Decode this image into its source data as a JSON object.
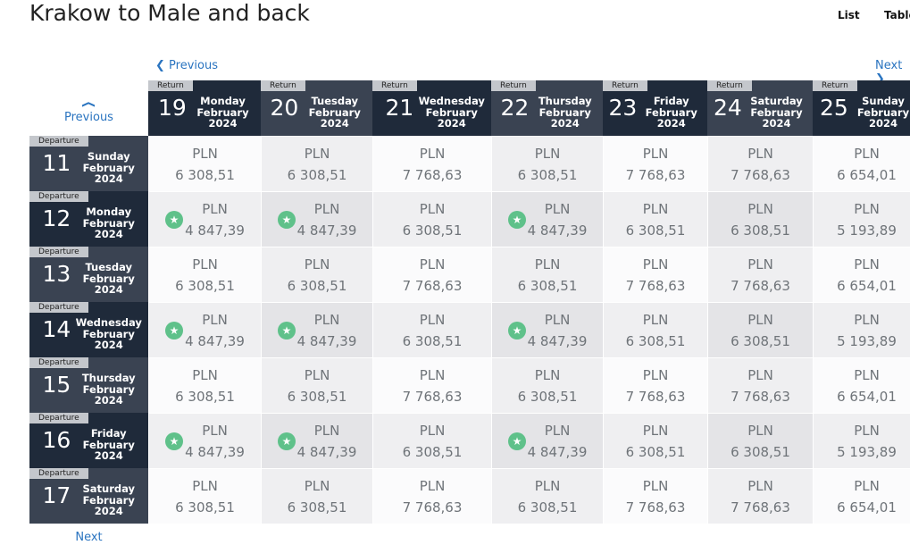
{
  "title": "Krakow to Male and back",
  "tabs": [
    "List",
    "Table"
  ],
  "nav": {
    "previous_return": "Previous",
    "next_return": "Next",
    "previous_departure": "Previous",
    "next_departure": "Next"
  },
  "columns": [
    {
      "tag": "Return",
      "day": "19",
      "weekday": "Monday",
      "month": "February",
      "year": "2024"
    },
    {
      "tag": "Return",
      "day": "20",
      "weekday": "Tuesday",
      "month": "February",
      "year": "2024"
    },
    {
      "tag": "Return",
      "day": "21",
      "weekday": "Wednesday",
      "month": "February",
      "year": "2024"
    },
    {
      "tag": "Return",
      "day": "22",
      "weekday": "Thursday",
      "month": "February",
      "year": "2024"
    },
    {
      "tag": "Return",
      "day": "23",
      "weekday": "Friday",
      "month": "February",
      "year": "2024"
    },
    {
      "tag": "Return",
      "day": "24",
      "weekday": "Saturday",
      "month": "February",
      "year": "2024"
    },
    {
      "tag": "Return",
      "day": "25",
      "weekday": "Sunday",
      "month": "February",
      "year": "2024"
    }
  ],
  "rows": [
    {
      "tag": "Departure",
      "day": "11",
      "weekday": "Sunday",
      "month": "February",
      "year": "2024",
      "cells": [
        {
          "currency": "PLN",
          "price": "6 308,51"
        },
        {
          "currency": "PLN",
          "price": "6 308,51"
        },
        {
          "currency": "PLN",
          "price": "7 768,63"
        },
        {
          "currency": "PLN",
          "price": "6 308,51"
        },
        {
          "currency": "PLN",
          "price": "7 768,63"
        },
        {
          "currency": "PLN",
          "price": "7 768,63"
        },
        {
          "currency": "PLN",
          "price": "6 654,01"
        }
      ]
    },
    {
      "tag": "Departure",
      "day": "12",
      "weekday": "Monday",
      "month": "February",
      "year": "2024",
      "cells": [
        {
          "currency": "PLN",
          "price": "4 847,39",
          "best": true
        },
        {
          "currency": "PLN",
          "price": "4 847,39",
          "best": true
        },
        {
          "currency": "PLN",
          "price": "6 308,51"
        },
        {
          "currency": "PLN",
          "price": "4 847,39",
          "best": true
        },
        {
          "currency": "PLN",
          "price": "6 308,51"
        },
        {
          "currency": "PLN",
          "price": "6 308,51"
        },
        {
          "currency": "PLN",
          "price": "5 193,89"
        }
      ]
    },
    {
      "tag": "Departure",
      "day": "13",
      "weekday": "Tuesday",
      "month": "February",
      "year": "2024",
      "cells": [
        {
          "currency": "PLN",
          "price": "6 308,51"
        },
        {
          "currency": "PLN",
          "price": "6 308,51"
        },
        {
          "currency": "PLN",
          "price": "7 768,63"
        },
        {
          "currency": "PLN",
          "price": "6 308,51"
        },
        {
          "currency": "PLN",
          "price": "7 768,63"
        },
        {
          "currency": "PLN",
          "price": "7 768,63"
        },
        {
          "currency": "PLN",
          "price": "6 654,01"
        }
      ]
    },
    {
      "tag": "Departure",
      "day": "14",
      "weekday": "Wednesday",
      "month": "February",
      "year": "2024",
      "cells": [
        {
          "currency": "PLN",
          "price": "4 847,39",
          "best": true
        },
        {
          "currency": "PLN",
          "price": "4 847,39",
          "best": true
        },
        {
          "currency": "PLN",
          "price": "6 308,51"
        },
        {
          "currency": "PLN",
          "price": "4 847,39",
          "best": true
        },
        {
          "currency": "PLN",
          "price": "6 308,51"
        },
        {
          "currency": "PLN",
          "price": "6 308,51"
        },
        {
          "currency": "PLN",
          "price": "5 193,89"
        }
      ]
    },
    {
      "tag": "Departure",
      "day": "15",
      "weekday": "Thursday",
      "month": "February",
      "year": "2024",
      "cells": [
        {
          "currency": "PLN",
          "price": "6 308,51"
        },
        {
          "currency": "PLN",
          "price": "6 308,51"
        },
        {
          "currency": "PLN",
          "price": "7 768,63"
        },
        {
          "currency": "PLN",
          "price": "6 308,51"
        },
        {
          "currency": "PLN",
          "price": "7 768,63"
        },
        {
          "currency": "PLN",
          "price": "7 768,63"
        },
        {
          "currency": "PLN",
          "price": "6 654,01"
        }
      ]
    },
    {
      "tag": "Departure",
      "day": "16",
      "weekday": "Friday",
      "month": "February",
      "year": "2024",
      "cells": [
        {
          "currency": "PLN",
          "price": "4 847,39",
          "best": true
        },
        {
          "currency": "PLN",
          "price": "4 847,39",
          "best": true
        },
        {
          "currency": "PLN",
          "price": "6 308,51"
        },
        {
          "currency": "PLN",
          "price": "4 847,39",
          "best": true
        },
        {
          "currency": "PLN",
          "price": "6 308,51"
        },
        {
          "currency": "PLN",
          "price": "6 308,51"
        },
        {
          "currency": "PLN",
          "price": "5 193,89"
        }
      ]
    },
    {
      "tag": "Departure",
      "day": "17",
      "weekday": "Saturday",
      "month": "February",
      "year": "2024",
      "cells": [
        {
          "currency": "PLN",
          "price": "6 308,51"
        },
        {
          "currency": "PLN",
          "price": "6 308,51"
        },
        {
          "currency": "PLN",
          "price": "7 768,63"
        },
        {
          "currency": "PLN",
          "price": "6 308,51"
        },
        {
          "currency": "PLN",
          "price": "7 768,63"
        },
        {
          "currency": "PLN",
          "price": "7 768,63"
        },
        {
          "currency": "PLN",
          "price": "6 654,01"
        }
      ]
    }
  ]
}
